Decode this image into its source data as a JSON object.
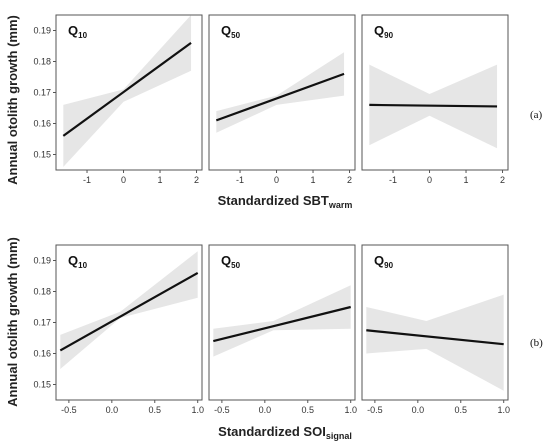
{
  "rows": [
    {
      "tag": "(a)",
      "ylabel": "Annual otolith growth (mm)",
      "xlabel_main": "Standardized SBT",
      "xlabel_sub": "warm"
    },
    {
      "tag": "(b)",
      "ylabel": "Annual otolith growth (mm)",
      "xlabel_main": "Standardized SOI",
      "xlabel_sub": "signal"
    }
  ],
  "chart_data": [
    {
      "type": "line",
      "row": "(a)",
      "ylim": [
        0.145,
        0.195
      ],
      "yticks": [
        0.15,
        0.16,
        0.17,
        0.18,
        0.19
      ],
      "ytick_labels": [
        "0.15",
        "0.16",
        "0.17",
        "0.18",
        "0.19"
      ],
      "xlim": [
        -1.85,
        2.15
      ],
      "xticks": [
        -1,
        0,
        1,
        2
      ],
      "xtick_labels": [
        "-1",
        "0",
        "1",
        "2"
      ],
      "panels": [
        {
          "label_main": "Q",
          "label_sub": "10",
          "fit": {
            "x": [
              -1.65,
              1.85
            ],
            "y": [
              0.156,
              0.186
            ]
          },
          "ci_lower": {
            "x": [
              -1.65,
              0.0,
              1.85
            ],
            "y": [
              0.146,
              0.167,
              0.177
            ]
          },
          "ci_upper": {
            "x": [
              -1.65,
              0.0,
              1.85
            ],
            "y": [
              0.166,
              0.171,
              0.195
            ]
          }
        },
        {
          "label_main": "Q",
          "label_sub": "50",
          "fit": {
            "x": [
              -1.65,
              1.85
            ],
            "y": [
              0.161,
              0.176
            ]
          },
          "ci_lower": {
            "x": [
              -1.65,
              0.0,
              1.85
            ],
            "y": [
              0.157,
              0.166,
              0.169
            ]
          },
          "ci_upper": {
            "x": [
              -1.65,
              0.0,
              1.85
            ],
            "y": [
              0.164,
              0.169,
              0.183
            ]
          }
        },
        {
          "label_main": "Q",
          "label_sub": "90",
          "fit": {
            "x": [
              -1.65,
              1.85
            ],
            "y": [
              0.166,
              0.1655
            ]
          },
          "ci_lower": {
            "x": [
              -1.65,
              0.0,
              1.85
            ],
            "y": [
              0.153,
              0.1625,
              0.152
            ]
          },
          "ci_upper": {
            "x": [
              -1.65,
              0.0,
              1.85
            ],
            "y": [
              0.179,
              0.1695,
              0.179
            ]
          }
        }
      ]
    },
    {
      "type": "line",
      "row": "(b)",
      "ylim": [
        0.145,
        0.195
      ],
      "yticks": [
        0.15,
        0.16,
        0.17,
        0.18,
        0.19
      ],
      "ytick_labels": [
        "0.15",
        "0.16",
        "0.17",
        "0.18",
        "0.19"
      ],
      "xlim": [
        -0.65,
        1.05
      ],
      "xticks": [
        -0.5,
        0.0,
        0.5,
        1.0
      ],
      "xtick_labels": [
        "-0.5",
        "0.0",
        "0.5",
        "1.0"
      ],
      "panels": [
        {
          "label_main": "Q",
          "label_sub": "10",
          "fit": {
            "x": [
              -0.6,
              1.0
            ],
            "y": [
              0.161,
              0.186
            ]
          },
          "ci_lower": {
            "x": [
              -0.6,
              0.1,
              1.0
            ],
            "y": [
              0.155,
              0.1715,
              0.178
            ]
          },
          "ci_upper": {
            "x": [
              -0.6,
              0.1,
              1.0
            ],
            "y": [
              0.166,
              0.1735,
              0.193
            ]
          }
        },
        {
          "label_main": "Q",
          "label_sub": "50",
          "fit": {
            "x": [
              -0.6,
              1.0
            ],
            "y": [
              0.164,
              0.175
            ]
          },
          "ci_lower": {
            "x": [
              -0.6,
              0.1,
              1.0
            ],
            "y": [
              0.159,
              0.1675,
              0.168
            ]
          },
          "ci_upper": {
            "x": [
              -0.6,
              0.1,
              1.0
            ],
            "y": [
              0.168,
              0.1705,
              0.182
            ]
          }
        },
        {
          "label_main": "Q",
          "label_sub": "90",
          "fit": {
            "x": [
              -0.6,
              1.0
            ],
            "y": [
              0.1675,
              0.163
            ]
          },
          "ci_lower": {
            "x": [
              -0.6,
              0.1,
              1.0
            ],
            "y": [
              0.16,
              0.1615,
              0.148
            ]
          },
          "ci_upper": {
            "x": [
              -0.6,
              0.1,
              1.0
            ],
            "y": [
              0.175,
              0.1705,
              0.179
            ]
          }
        }
      ]
    }
  ],
  "colors": {
    "fit_line": "#111111",
    "ci_band": "#e6e6e6",
    "panel_border": "#555555"
  }
}
